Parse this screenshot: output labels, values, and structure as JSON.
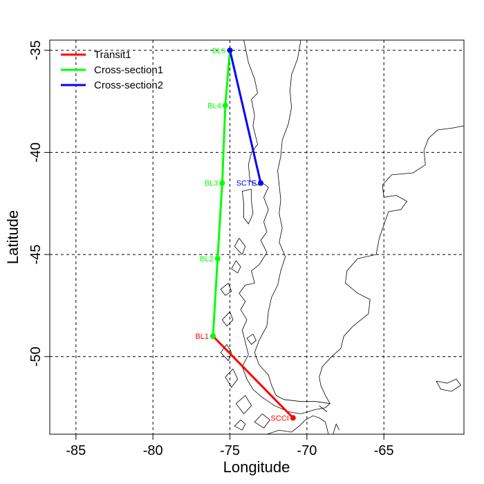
{
  "chart_data": {
    "type": "map",
    "xlabel": "Longitude",
    "ylabel": "Latitude",
    "xlim": [
      -86.7,
      -59.8
    ],
    "ylim": [
      -53.8,
      -34.5
    ],
    "xticks": [
      -85,
      -80,
      -75,
      -70,
      -65
    ],
    "yticks": [
      -35,
      -40,
      -45,
      -50
    ],
    "grid": true,
    "legend_position": "top-left",
    "series": [
      {
        "name": "Transit1",
        "color": "#ff0000",
        "points": [
          {
            "label": "BL1",
            "lon": -76.1,
            "lat": -49.0
          },
          {
            "label": "SCCI",
            "lon": -70.9,
            "lat": -53.0
          }
        ]
      },
      {
        "name": "Cross-section1",
        "color": "#00ff00",
        "points": [
          {
            "label": "BL1",
            "lon": -76.1,
            "lat": -49.0
          },
          {
            "label": "BL2",
            "lon": -75.8,
            "lat": -45.2
          },
          {
            "label": "BL3",
            "lon": -75.5,
            "lat": -41.5
          },
          {
            "label": "BL4",
            "lon": -75.3,
            "lat": -37.7
          },
          {
            "label": "BL5",
            "lon": -75.0,
            "lat": -35.0
          }
        ]
      },
      {
        "name": "Cross-section2",
        "color": "#0000ff",
        "points": [
          {
            "label": "BL5",
            "lon": -75.0,
            "lat": -35.0
          },
          {
            "label": "SCTE",
            "lon": -73.0,
            "lat": -41.5
          }
        ]
      }
    ],
    "station_labels": [
      {
        "text": "BL1",
        "color": "#ff0000",
        "lon": -76.1,
        "lat": -49.0,
        "side": "left"
      },
      {
        "text": "SCCI",
        "color": "#ff0000",
        "lon": -70.9,
        "lat": -53.0,
        "side": "left"
      },
      {
        "text": "BL2",
        "color": "#00ff00",
        "lon": -75.8,
        "lat": -45.2,
        "side": "left"
      },
      {
        "text": "BL3",
        "color": "#00ff00",
        "lon": -75.5,
        "lat": -41.5,
        "side": "left"
      },
      {
        "text": "BL4",
        "color": "#00ff00",
        "lon": -75.3,
        "lat": -37.7,
        "side": "left"
      },
      {
        "text": "BL5",
        "color": "#00ff00",
        "lon": -75.0,
        "lat": -35.0,
        "side": "left"
      },
      {
        "text": "SCTE",
        "color": "#0000ff",
        "lon": -73.0,
        "lat": -41.5,
        "side": "left"
      }
    ],
    "coastline_lines": [
      [
        [
          -74.1,
          -34.5
        ],
        [
          -73.8,
          -35.6
        ],
        [
          -73.4,
          -36.4
        ],
        [
          -73.2,
          -37.1
        ],
        [
          -73.6,
          -37.4
        ],
        [
          -73.4,
          -38.2
        ],
        [
          -73.5,
          -38.7
        ],
        [
          -73.2,
          -39.6
        ],
        [
          -73.6,
          -40.0
        ],
        [
          -73.8,
          -40.6
        ],
        [
          -73.7,
          -41.4
        ],
        [
          -73.2,
          -41.6
        ],
        [
          -72.9,
          -41.5
        ],
        [
          -72.5,
          -41.7
        ],
        [
          -72.8,
          -42.2
        ],
        [
          -72.5,
          -42.8
        ],
        [
          -72.8,
          -43.4
        ],
        [
          -72.6,
          -43.9
        ],
        [
          -73.0,
          -44.3
        ],
        [
          -72.6,
          -44.9
        ],
        [
          -73.1,
          -45.5
        ],
        [
          -73.6,
          -45.8
        ],
        [
          -73.4,
          -46.4
        ],
        [
          -74.0,
          -46.5
        ],
        [
          -74.4,
          -46.9
        ],
        [
          -74.0,
          -47.3
        ],
        [
          -74.3,
          -47.7
        ],
        [
          -73.9,
          -48.2
        ],
        [
          -74.2,
          -48.7
        ],
        [
          -74.0,
          -49.3
        ],
        [
          -73.8,
          -49.9
        ],
        [
          -74.2,
          -50.5
        ],
        [
          -73.9,
          -51.1
        ],
        [
          -73.5,
          -51.6
        ],
        [
          -72.9,
          -52.0
        ],
        [
          -72.1,
          -52.4
        ],
        [
          -71.2,
          -52.7
        ],
        [
          -70.4,
          -52.8
        ],
        [
          -69.5,
          -52.6
        ],
        [
          -68.8,
          -52.5
        ],
        [
          -68.5,
          -52.3
        ],
        [
          -68.8,
          -51.9
        ],
        [
          -69.1,
          -51.4
        ],
        [
          -69.2,
          -51.0
        ],
        [
          -69.0,
          -50.5
        ],
        [
          -68.4,
          -50.0
        ],
        [
          -67.8,
          -49.6
        ],
        [
          -67.6,
          -49.0
        ],
        [
          -67.0,
          -48.5
        ],
        [
          -66.0,
          -47.9
        ],
        [
          -65.9,
          -47.2
        ],
        [
          -66.7,
          -46.9
        ],
        [
          -67.5,
          -46.4
        ],
        [
          -67.4,
          -45.8
        ],
        [
          -66.7,
          -45.2
        ],
        [
          -65.5,
          -45.0
        ],
        [
          -65.3,
          -44.2
        ],
        [
          -64.7,
          -42.9
        ],
        [
          -63.9,
          -42.8
        ],
        [
          -63.5,
          -42.4
        ],
        [
          -64.2,
          -42.1
        ],
        [
          -65.0,
          -42.2
        ],
        [
          -65.1,
          -41.6
        ],
        [
          -64.5,
          -41.1
        ],
        [
          -63.1,
          -41.0
        ],
        [
          -62.3,
          -40.6
        ],
        [
          -62.4,
          -39.9
        ],
        [
          -62.1,
          -39.3
        ],
        [
          -61.5,
          -38.9
        ],
        [
          -60.5,
          -38.8
        ],
        [
          -59.8,
          -38.7
        ]
      ],
      [
        [
          -72.6,
          -53.8
        ],
        [
          -71.8,
          -53.6
        ],
        [
          -71.0,
          -53.7
        ],
        [
          -70.5,
          -53.4
        ],
        [
          -70.1,
          -53.1
        ],
        [
          -69.6,
          -52.9
        ],
        [
          -69.2,
          -53.0
        ],
        [
          -68.8,
          -53.2
        ],
        [
          -68.6,
          -53.8
        ]
      ],
      [
        [
          -73.6,
          -41.8
        ],
        [
          -74.2,
          -41.9
        ],
        [
          -74.1,
          -42.5
        ],
        [
          -74.1,
          -43.2
        ],
        [
          -73.8,
          -43.5
        ],
        [
          -73.5,
          -43.0
        ],
        [
          -73.6,
          -42.4
        ],
        [
          -73.6,
          -41.8
        ]
      ],
      [
        [
          -74.4,
          -44.2
        ],
        [
          -74.7,
          -44.6
        ],
        [
          -74.2,
          -45.0
        ],
        [
          -74.0,
          -44.6
        ],
        [
          -74.4,
          -44.2
        ]
      ],
      [
        [
          -75.1,
          -46.4
        ],
        [
          -75.6,
          -46.7
        ],
        [
          -75.3,
          -47.0
        ],
        [
          -74.9,
          -46.8
        ],
        [
          -75.1,
          -46.4
        ]
      ],
      [
        [
          -75.0,
          -47.8
        ],
        [
          -75.5,
          -48.2
        ],
        [
          -75.2,
          -48.5
        ],
        [
          -74.8,
          -48.2
        ],
        [
          -75.0,
          -47.8
        ]
      ],
      [
        [
          -75.2,
          -49.4
        ],
        [
          -75.6,
          -49.8
        ],
        [
          -75.1,
          -50.2
        ],
        [
          -74.9,
          -49.8
        ],
        [
          -75.2,
          -49.4
        ]
      ],
      [
        [
          -74.8,
          -50.6
        ],
        [
          -75.3,
          -51.0
        ],
        [
          -74.9,
          -51.5
        ],
        [
          -74.5,
          -51.1
        ],
        [
          -74.8,
          -50.6
        ]
      ],
      [
        [
          -74.0,
          -51.9
        ],
        [
          -74.6,
          -52.3
        ],
        [
          -74.1,
          -52.8
        ],
        [
          -73.6,
          -52.4
        ],
        [
          -74.0,
          -51.9
        ]
      ],
      [
        [
          -72.9,
          -52.8
        ],
        [
          -73.4,
          -53.2
        ],
        [
          -72.8,
          -53.5
        ],
        [
          -72.4,
          -53.1
        ],
        [
          -72.9,
          -52.8
        ]
      ],
      [
        [
          -74.6,
          -45.3
        ],
        [
          -74.9,
          -45.7
        ],
        [
          -74.5,
          -45.9
        ],
        [
          -74.3,
          -45.6
        ],
        [
          -74.6,
          -45.3
        ]
      ],
      [
        [
          -61.6,
          -51.2
        ],
        [
          -60.9,
          -51.3
        ],
        [
          -60.3,
          -51.1
        ],
        [
          -60.0,
          -51.4
        ],
        [
          -60.6,
          -51.7
        ],
        [
          -61.3,
          -51.6
        ],
        [
          -61.6,
          -51.2
        ]
      ],
      [
        [
          -73.5,
          -48.9
        ],
        [
          -73.9,
          -49.1
        ],
        [
          -73.6,
          -49.4
        ],
        [
          -73.3,
          -49.2
        ],
        [
          -73.5,
          -48.9
        ]
      ],
      [
        [
          -74.3,
          -53.1
        ],
        [
          -74.7,
          -53.4
        ],
        [
          -74.2,
          -53.6
        ],
        [
          -74.0,
          -53.3
        ],
        [
          -74.3,
          -53.1
        ]
      ]
    ],
    "border_line": [
      [
        -70.4,
        -34.5
      ],
      [
        -70.6,
        -35.4
      ],
      [
        -71.0,
        -36.2
      ],
      [
        -71.1,
        -37.0
      ],
      [
        -71.0,
        -37.8
      ],
      [
        -71.2,
        -38.6
      ],
      [
        -71.6,
        -39.4
      ],
      [
        -71.7,
        -40.2
      ],
      [
        -71.9,
        -40.9
      ],
      [
        -71.8,
        -41.6
      ],
      [
        -71.7,
        -42.3
      ],
      [
        -71.8,
        -43.0
      ],
      [
        -71.6,
        -43.7
      ],
      [
        -71.8,
        -44.4
      ],
      [
        -71.4,
        -45.1
      ],
      [
        -71.7,
        -45.8
      ],
      [
        -71.9,
        -46.5
      ],
      [
        -72.3,
        -47.1
      ],
      [
        -72.5,
        -47.8
      ],
      [
        -72.6,
        -48.5
      ],
      [
        -73.1,
        -49.2
      ],
      [
        -73.4,
        -49.8
      ],
      [
        -73.1,
        -50.4
      ],
      [
        -72.5,
        -50.9
      ],
      [
        -72.3,
        -51.4
      ],
      [
        -72.0,
        -51.9
      ],
      [
        -71.5,
        -52.1
      ],
      [
        -70.4,
        -52.2
      ],
      [
        -69.4,
        -52.2
      ],
      [
        -68.5,
        -52.3
      ]
    ],
    "inland_lines": [
      [
        [
          -68.3,
          -53.8
        ],
        [
          -68.1,
          -53.3
        ],
        [
          -67.9,
          -53.6
        ]
      ],
      [
        [
          -69.2,
          -52.4
        ],
        [
          -68.7,
          -52.7
        ]
      ]
    ]
  },
  "plot_area_color": "#000000"
}
